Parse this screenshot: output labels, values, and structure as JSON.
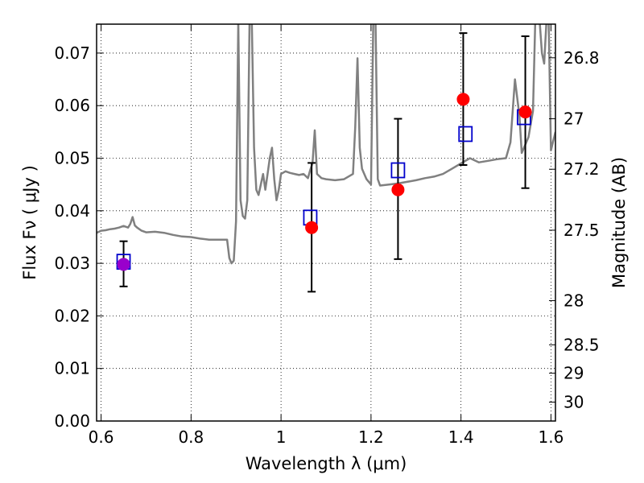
{
  "chart_data": {
    "type": "line",
    "title": "",
    "xlabel": "Wavelength  λ (μm)",
    "ylabel": "Flux  Fν  ( μJy )",
    "y2label": "Magnitude (AB)",
    "xlim": [
      0.59,
      1.61
    ],
    "ylim": [
      0.0,
      0.0755
    ],
    "grid": true,
    "x_ticks": [
      0.6,
      0.8,
      1.0,
      1.2,
      1.4,
      1.6
    ],
    "x_tick_labels": [
      "0.6",
      "0.8",
      "1",
      "1.2",
      "1.4",
      "1.6"
    ],
    "y_ticks": [
      0.0,
      0.01,
      0.02,
      0.03,
      0.04,
      0.05,
      0.06,
      0.07
    ],
    "y_tick_labels": [
      "0.00",
      "0.01",
      "0.02",
      "0.03",
      "0.04",
      "0.05",
      "0.06",
      "0.07"
    ],
    "y2_ticks": [
      {
        "label": "26.8",
        "flux": 0.0691
      },
      {
        "label": "27",
        "flux": 0.0575
      },
      {
        "label": "27.2",
        "flux": 0.0479
      },
      {
        "label": "27.5",
        "flux": 0.0363
      },
      {
        "label": "28",
        "flux": 0.0229
      },
      {
        "label": "28.5",
        "flux": 0.0145
      },
      {
        "label": "29",
        "flux": 0.0091
      },
      {
        "label": "30",
        "flux": 0.0036
      }
    ],
    "series": [
      {
        "kind": "spectrum",
        "color": "#808080",
        "x": [
          0.59,
          0.6,
          0.61,
          0.62,
          0.63,
          0.64,
          0.65,
          0.66,
          0.665,
          0.67,
          0.675,
          0.68,
          0.69,
          0.7,
          0.72,
          0.74,
          0.76,
          0.78,
          0.8,
          0.82,
          0.84,
          0.86,
          0.88,
          0.885,
          0.89,
          0.895,
          0.9,
          0.905,
          0.91,
          0.915,
          0.92,
          0.925,
          0.93,
          0.935,
          0.94,
          0.945,
          0.95,
          0.955,
          0.96,
          0.965,
          0.97,
          0.975,
          0.98,
          0.985,
          0.99,
          0.995,
          1.0,
          1.01,
          1.02,
          1.03,
          1.04,
          1.05,
          1.06,
          1.065,
          1.07,
          1.075,
          1.08,
          1.09,
          1.1,
          1.12,
          1.14,
          1.16,
          1.165,
          1.17,
          1.175,
          1.18,
          1.19,
          1.2,
          1.205,
          1.21,
          1.215,
          1.22,
          1.24,
          1.26,
          1.28,
          1.3,
          1.32,
          1.34,
          1.36,
          1.38,
          1.4,
          1.42,
          1.44,
          1.46,
          1.48,
          1.5,
          1.51,
          1.52,
          1.53,
          1.535,
          1.54,
          1.55,
          1.56,
          1.565,
          1.57,
          1.575,
          1.58,
          1.585,
          1.59,
          1.595,
          1.6,
          1.61
        ],
        "y": [
          0.0358,
          0.0362,
          0.0363,
          0.0365,
          0.0366,
          0.0368,
          0.0371,
          0.0368,
          0.0375,
          0.0388,
          0.0372,
          0.0368,
          0.0362,
          0.0359,
          0.036,
          0.0358,
          0.0354,
          0.0351,
          0.035,
          0.0347,
          0.0345,
          0.0345,
          0.0345,
          0.031,
          0.03,
          0.0305,
          0.038,
          0.076,
          0.042,
          0.039,
          0.0385,
          0.042,
          0.076,
          0.076,
          0.052,
          0.044,
          0.043,
          0.045,
          0.047,
          0.044,
          0.047,
          0.05,
          0.052,
          0.046,
          0.042,
          0.044,
          0.047,
          0.0475,
          0.0472,
          0.047,
          0.0468,
          0.047,
          0.0462,
          0.0478,
          0.049,
          0.0553,
          0.047,
          0.0462,
          0.046,
          0.0458,
          0.046,
          0.047,
          0.056,
          0.069,
          0.052,
          0.048,
          0.046,
          0.045,
          0.076,
          0.076,
          0.046,
          0.0448,
          0.045,
          0.0452,
          0.0455,
          0.0458,
          0.0462,
          0.0465,
          0.047,
          0.048,
          0.049,
          0.05,
          0.0492,
          0.0495,
          0.0498,
          0.05,
          0.053,
          0.065,
          0.058,
          0.051,
          0.052,
          0.054,
          0.059,
          0.076,
          0.076,
          0.076,
          0.07,
          0.068,
          0.076,
          0.076,
          0.0515,
          0.055
        ]
      },
      {
        "kind": "model_points",
        "marker": "open-square",
        "color": "#0000cc",
        "x": [
          0.65,
          1.065,
          1.26,
          1.41,
          1.54
        ],
        "y": [
          0.0303,
          0.0387,
          0.0477,
          0.0546,
          0.0578
        ]
      },
      {
        "kind": "observed_points",
        "marker": "filled-circle",
        "color": "#ff0000",
        "x": [
          0.65,
          1.068,
          1.26,
          1.405,
          1.543
        ],
        "y": [
          0.0298,
          0.0368,
          0.044,
          0.0612,
          0.0588
        ],
        "yerr_low": [
          0.0256,
          0.0246,
          0.0308,
          0.0487,
          0.0443
        ],
        "yerr_high": [
          0.0342,
          0.0491,
          0.0575,
          0.0738,
          0.0732
        ],
        "point_colors": [
          "#9900cc",
          "#ff0000",
          "#ff0000",
          "#ff0000",
          "#ff0000"
        ]
      }
    ]
  }
}
